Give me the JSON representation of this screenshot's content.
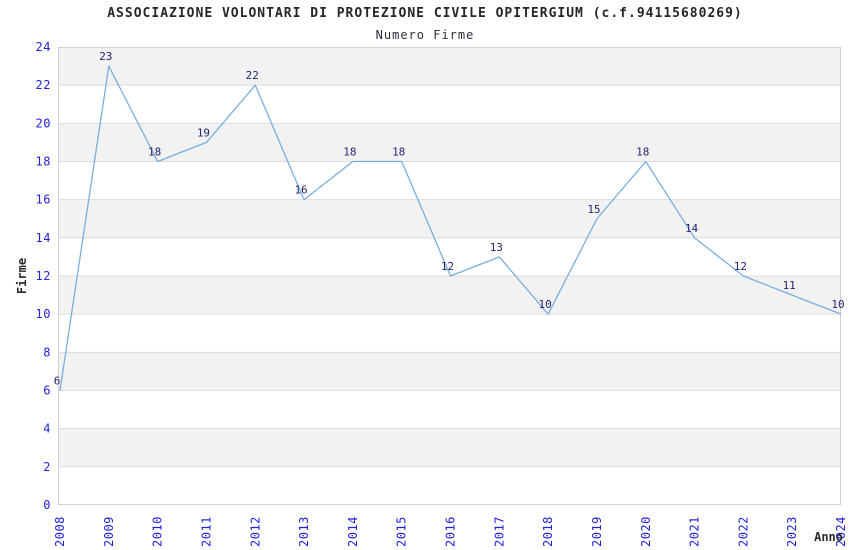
{
  "chart_data": {
    "type": "line",
    "title": "ASSOCIAZIONE VOLONTARI DI PROTEZIONE CIVILE OPITERGIUM (c.f.94115680269)",
    "subtitle": "Numero Firme",
    "xlabel": "Anno",
    "ylabel": "Firme",
    "categories": [
      "2008",
      "2009",
      "2010",
      "2011",
      "2012",
      "2013",
      "2014",
      "2015",
      "2016",
      "2017",
      "2018",
      "2019",
      "2020",
      "2021",
      "2022",
      "2023",
      "2024"
    ],
    "values": [
      6,
      23,
      18,
      19,
      22,
      16,
      18,
      18,
      12,
      13,
      10,
      15,
      18,
      14,
      12,
      11,
      10
    ],
    "ylim": [
      0,
      24
    ],
    "ytick_step": 2,
    "yticks": [
      0,
      2,
      4,
      6,
      8,
      10,
      12,
      14,
      16,
      18,
      20,
      22,
      24
    ],
    "grid": true,
    "legend": "none",
    "colors": {
      "line": "#7aaede",
      "point_label": "#252575",
      "tick_label": "#2222dd",
      "axis_title": "#2a2a2a",
      "band_even": "#f2f2f2",
      "band_odd": "#ffffff",
      "gridline": "#dcdcdc",
      "plot_border": "#d0d0d0",
      "background": "#ffffff"
    }
  }
}
